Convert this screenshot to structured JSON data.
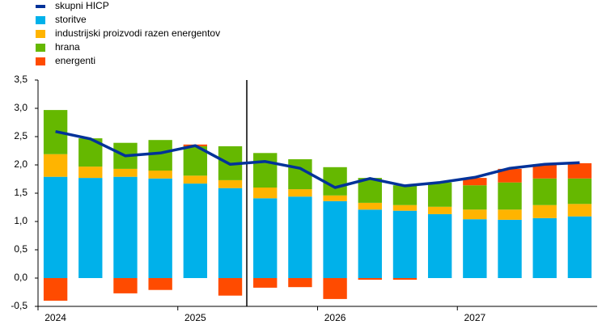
{
  "chart_data": {
    "type": "bar",
    "categories": [
      "2024",
      null,
      null,
      null,
      "2025",
      null,
      null,
      null,
      "2026",
      null,
      null,
      null,
      "2027",
      null,
      null,
      null
    ],
    "series": [
      {
        "name": "skupni HICP",
        "type": "line",
        "color": "#003299",
        "values": [
          2.59,
          2.46,
          2.16,
          2.21,
          2.34,
          2.01,
          2.06,
          1.94,
          1.6,
          1.76,
          1.63,
          1.69,
          1.78,
          1.94,
          2.01,
          2.04
        ]
      },
      {
        "name": "storitve",
        "color": "#00b1ea",
        "values": [
          1.79,
          1.77,
          1.79,
          1.76,
          1.67,
          1.59,
          1.41,
          1.44,
          1.36,
          1.21,
          1.19,
          1.13,
          1.04,
          1.03,
          1.06,
          1.09
        ]
      },
      {
        "name": "industrijski proizvodi razen energentov",
        "color": "#ffb400",
        "values": [
          0.4,
          0.2,
          0.14,
          0.14,
          0.14,
          0.14,
          0.19,
          0.13,
          0.1,
          0.12,
          0.1,
          0.13,
          0.17,
          0.18,
          0.23,
          0.22
        ]
      },
      {
        "name": "hrana",
        "color": "#65b800",
        "values": [
          0.78,
          0.5,
          0.46,
          0.54,
          0.52,
          0.6,
          0.61,
          0.53,
          0.5,
          0.44,
          0.35,
          0.43,
          0.43,
          0.48,
          0.47,
          0.45
        ]
      },
      {
        "name": "energenti",
        "color": "#ff4b00",
        "values": [
          -0.4,
          0.0,
          -0.27,
          -0.21,
          0.03,
          -0.31,
          -0.17,
          -0.16,
          -0.37,
          -0.03,
          -0.03,
          0.0,
          0.13,
          0.24,
          0.25,
          0.27
        ]
      }
    ],
    "ylim": [
      -0.5,
      3.5
    ],
    "yticks": [
      {
        "value": -0.5,
        "label": "-0,5"
      },
      {
        "value": 0,
        "label": "0,0"
      },
      {
        "value": 0.5,
        "label": "0,5"
      },
      {
        "value": 1,
        "label": "1,0"
      },
      {
        "value": 1.5,
        "label": "1,5"
      },
      {
        "value": 2,
        "label": "2,0"
      },
      {
        "value": 2.5,
        "label": "2,5"
      },
      {
        "value": 3,
        "label": "3,0"
      },
      {
        "value": 3.5,
        "label": "3,5"
      }
    ],
    "grid": false,
    "legend": "top-left"
  }
}
